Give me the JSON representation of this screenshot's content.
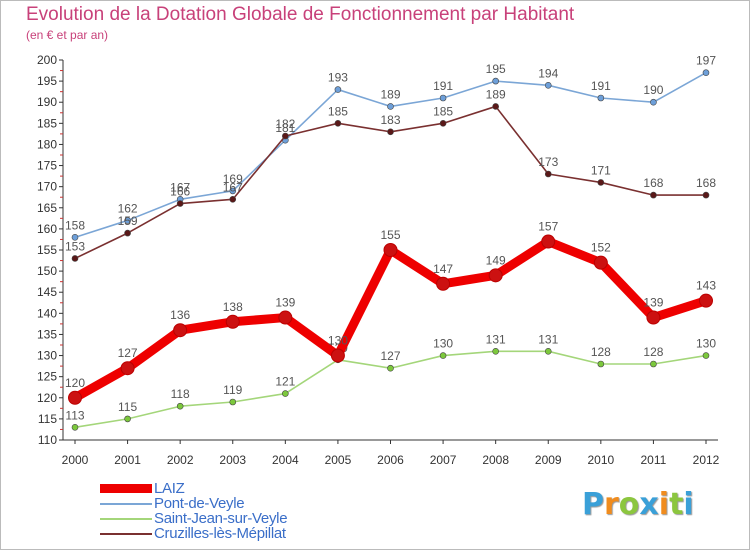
{
  "title": "Evolution de la Dotation Globale de Fonctionnement par Habitant",
  "subtitle": "(en € et par an)",
  "logo_text": "Proxiti",
  "logo_letters": [
    {
      "char": "P",
      "color": "#3aa0d8"
    },
    {
      "char": "r",
      "color": "#f08c1e"
    },
    {
      "char": "o",
      "color": "#8cc63f"
    },
    {
      "char": "x",
      "color": "#3aa0d8"
    },
    {
      "char": "i",
      "color": "#f08c1e"
    },
    {
      "char": "t",
      "color": "#8cc63f"
    },
    {
      "char": "i",
      "color": "#3aa0d8"
    }
  ],
  "chart_data": {
    "type": "line",
    "title": "Evolution de la Dotation Globale de Fonctionnement par Habitant",
    "subtitle": "(en € et par an)",
    "xlabel": "",
    "ylabel": "",
    "x": [
      "2000",
      "2001",
      "2002",
      "2003",
      "2004",
      "2005",
      "2006",
      "2007",
      "2008",
      "2009",
      "2010",
      "2011",
      "2012"
    ],
    "ylim": [
      110,
      200
    ],
    "yticks": [
      110,
      115,
      120,
      125,
      130,
      135,
      140,
      145,
      150,
      155,
      160,
      165,
      170,
      175,
      180,
      185,
      190,
      195,
      200
    ],
    "grid": false,
    "legend_position": "bottom-left",
    "series": [
      {
        "name": "LAIZ",
        "color": "#ee0000",
        "marker": "#cc1111",
        "values": [
          120,
          127,
          136,
          138,
          139,
          130,
          155,
          147,
          149,
          157,
          152,
          139,
          143
        ]
      },
      {
        "name": "Pont-de-Veyle",
        "color": "#7ba6d6",
        "marker": "#6d9fd9",
        "values": [
          158,
          162,
          167,
          169,
          181,
          193,
          189,
          191,
          195,
          194,
          191,
          190,
          197
        ]
      },
      {
        "name": "Saint-Jean-sur-Veyle",
        "color": "#a4d67a",
        "marker": "#7cc83c",
        "values": [
          113,
          115,
          118,
          119,
          121,
          129,
          127,
          130,
          131,
          131,
          128,
          128,
          130
        ]
      },
      {
        "name": "Cruzilles-lès-Mépillat",
        "color": "#7a3030",
        "marker": "#5a1818",
        "values": [
          153,
          159,
          166,
          167,
          182,
          185,
          183,
          185,
          189,
          173,
          171,
          168,
          168
        ]
      }
    ]
  }
}
